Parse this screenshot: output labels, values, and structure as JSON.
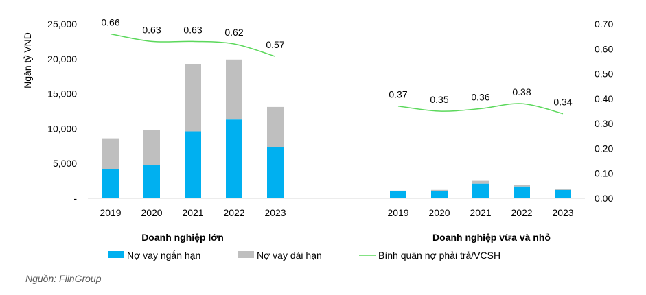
{
  "chart_data": {
    "type": "bar",
    "ylabel": "Ngàn tỷ VND",
    "ylim": [
      0,
      25000
    ],
    "y_ticks": [
      "-",
      "5,000",
      "10,000",
      "15,000",
      "20,000",
      "25,000"
    ],
    "y2lim": [
      0,
      0.7
    ],
    "y2_ticks": [
      "0.00",
      "0.10",
      "0.20",
      "0.30",
      "0.40",
      "0.50",
      "0.60",
      "0.70"
    ],
    "groups": [
      {
        "name": "Doanh nghiệp lớn",
        "categories": [
          "2019",
          "2020",
          "2021",
          "2022",
          "2023"
        ],
        "series": [
          {
            "name": "Nợ vay ngắn hạn",
            "values": [
              4200,
              4800,
              9600,
              11300,
              7300
            ]
          },
          {
            "name": "Nợ vay dài hạn",
            "values": [
              4400,
              5000,
              9600,
              8600,
              5800
            ]
          }
        ],
        "ratio": {
          "name": "Bình quân nợ phải trả/VCSH",
          "values": [
            0.66,
            0.63,
            0.63,
            0.62,
            0.57
          ],
          "labels": [
            "0.66",
            "0.63",
            "0.63",
            "0.62",
            "0.57"
          ]
        }
      },
      {
        "name": "Doanh nghiệp vừa và nhỏ",
        "categories": [
          "2019",
          "2020",
          "2021",
          "2022",
          "2023"
        ],
        "series": [
          {
            "name": "Nợ vay ngắn hạn",
            "values": [
              1000,
              1000,
              2100,
              1700,
              1200
            ]
          },
          {
            "name": "Nợ vay dài hạn",
            "values": [
              100,
              200,
              400,
              200,
              100
            ]
          }
        ],
        "ratio": {
          "name": "Bình quân nợ phải trả/VCSH",
          "values": [
            0.37,
            0.35,
            0.36,
            0.38,
            0.34
          ],
          "labels": [
            "0.37",
            "0.35",
            "0.36",
            "0.38",
            "0.34"
          ]
        }
      }
    ],
    "legend": [
      {
        "name": "Nợ vay ngắn hạn",
        "kind": "bar",
        "color": "#00B0F0"
      },
      {
        "name": "Nợ vay dài hạn",
        "kind": "bar",
        "color": "#BFBFBF"
      },
      {
        "name": "Bình quân nợ phải trả/VCSH",
        "kind": "line",
        "color": "#5BD85B"
      }
    ],
    "source": "Nguồn: FiinGroup"
  }
}
